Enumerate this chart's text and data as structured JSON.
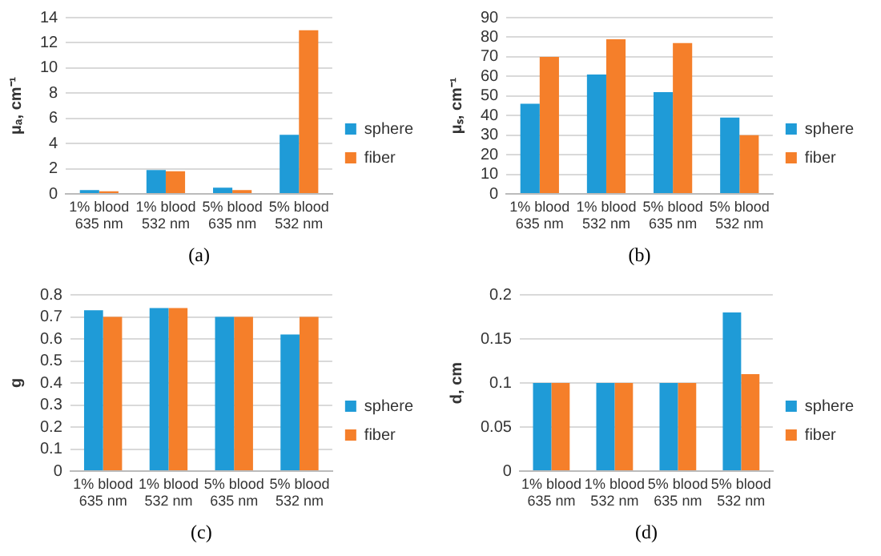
{
  "chart_data": [
    {
      "type": "bar",
      "xlabel": "(a)",
      "ylabel": "μₐ, cm⁻¹",
      "categories": [
        "1% blood\n635 nm",
        "1% blood\n532 nm",
        "5% blood\n635 nm",
        "5% blood\n532 nm"
      ],
      "series": [
        {
          "name": "sphere",
          "color": "#1f9bd7",
          "values": [
            0.3,
            1.9,
            0.5,
            4.7
          ]
        },
        {
          "name": "fiber",
          "color": "#f57f2a",
          "values": [
            0.2,
            1.8,
            0.3,
            13
          ]
        }
      ],
      "ylim": [
        0,
        14
      ],
      "yticks": [
        0,
        2,
        4,
        6,
        8,
        10,
        12,
        14
      ],
      "grid": "y",
      "legend": "right"
    },
    {
      "type": "bar",
      "xlabel": "(b)",
      "ylabel": "μₛ, cm⁻¹",
      "categories": [
        "1% blood\n635 nm",
        "1% blood\n532 nm",
        "5% blood\n635 nm",
        "5% blood\n532 nm"
      ],
      "series": [
        {
          "name": "sphere",
          "color": "#1f9bd7",
          "values": [
            46,
            61,
            52,
            39
          ]
        },
        {
          "name": "fiber",
          "color": "#f57f2a",
          "values": [
            70,
            79,
            77,
            30
          ]
        }
      ],
      "ylim": [
        0,
        90
      ],
      "yticks": [
        0,
        10,
        20,
        30,
        40,
        50,
        60,
        70,
        80,
        90
      ],
      "grid": "y",
      "legend": "right"
    },
    {
      "type": "bar",
      "xlabel": "(c)",
      "ylabel": "g",
      "categories": [
        "1% blood\n635 nm",
        "1% blood\n532 nm",
        "5% blood\n635 nm",
        "5% blood\n532 nm"
      ],
      "series": [
        {
          "name": "sphere",
          "color": "#1f9bd7",
          "values": [
            0.73,
            0.74,
            0.7,
            0.62
          ]
        },
        {
          "name": "fiber",
          "color": "#f57f2a",
          "values": [
            0.7,
            0.74,
            0.7,
            0.7
          ]
        }
      ],
      "ylim": [
        0,
        0.8
      ],
      "yticks": [
        0,
        0.1,
        0.2,
        0.3,
        0.4,
        0.5,
        0.6,
        0.7,
        0.8
      ],
      "grid": "y",
      "legend": "right"
    },
    {
      "type": "bar",
      "xlabel": "(d)",
      "ylabel": "d, cm",
      "categories": [
        "1% blood\n635 nm",
        "1% blood\n532 nm",
        "5% blood\n635 nm",
        "5% blood\n532 nm"
      ],
      "series": [
        {
          "name": "sphere",
          "color": "#1f9bd7",
          "values": [
            0.1,
            0.1,
            0.1,
            0.18
          ]
        },
        {
          "name": "fiber",
          "color": "#f57f2a",
          "values": [
            0.1,
            0.1,
            0.1,
            0.11
          ]
        }
      ],
      "ylim": [
        0,
        0.2
      ],
      "yticks": [
        0,
        0.05,
        0.1,
        0.15,
        0.2
      ],
      "grid": "y",
      "legend": "right"
    }
  ]
}
